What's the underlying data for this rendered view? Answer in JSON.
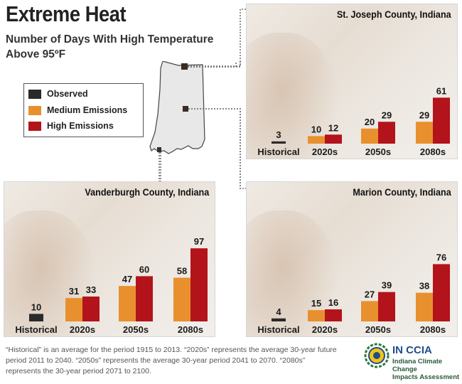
{
  "title": "Extreme Heat",
  "subtitle_line1": "Number of Days With High Temperature",
  "subtitle_line2": "Above 95ºF",
  "legend": {
    "observed": "Observed",
    "medium": "Medium Emissions",
    "high": "High Emissions"
  },
  "colors": {
    "observed": "#2a2a2a",
    "medium": "#e8902e",
    "high": "#b3131b"
  },
  "chart_data": [
    {
      "type": "bar",
      "title": "St. Joseph County, Indiana",
      "categories": [
        "Historical",
        "2020s",
        "2050s",
        "2080s"
      ],
      "series": [
        {
          "name": "Observed",
          "values": [
            3,
            null,
            null,
            null
          ]
        },
        {
          "name": "Medium Emissions",
          "values": [
            null,
            10,
            20,
            29
          ]
        },
        {
          "name": "High Emissions",
          "values": [
            null,
            12,
            29,
            61
          ]
        }
      ]
    },
    {
      "type": "bar",
      "title": "Vanderburgh County, Indiana",
      "categories": [
        "Historical",
        "2020s",
        "2050s",
        "2080s"
      ],
      "series": [
        {
          "name": "Observed",
          "values": [
            10,
            null,
            null,
            null
          ]
        },
        {
          "name": "Medium Emissions",
          "values": [
            null,
            31,
            47,
            58
          ]
        },
        {
          "name": "High Emissions",
          "values": [
            null,
            33,
            60,
            97
          ]
        }
      ]
    },
    {
      "type": "bar",
      "title": "Marion County, Indiana",
      "categories": [
        "Historical",
        "2020s",
        "2050s",
        "2080s"
      ],
      "series": [
        {
          "name": "Observed",
          "values": [
            4,
            null,
            null,
            null
          ]
        },
        {
          "name": "Medium Emissions",
          "values": [
            null,
            15,
            27,
            38
          ]
        },
        {
          "name": "High Emissions",
          "values": [
            null,
            16,
            39,
            76
          ]
        }
      ]
    }
  ],
  "footnote": "“Historical” is an average for the period 1915 to 2013. “2020s” represents the average 30-year future period 2011 to 2040. “2050s” represents the average 30-year period 2041 to 2070. “2080s” represents the 30-year period 2071 to 2100.",
  "logo": {
    "name": "IN CCIA",
    "line1": "Indiana Climate Change",
    "line2": "Impacts Assessment"
  }
}
